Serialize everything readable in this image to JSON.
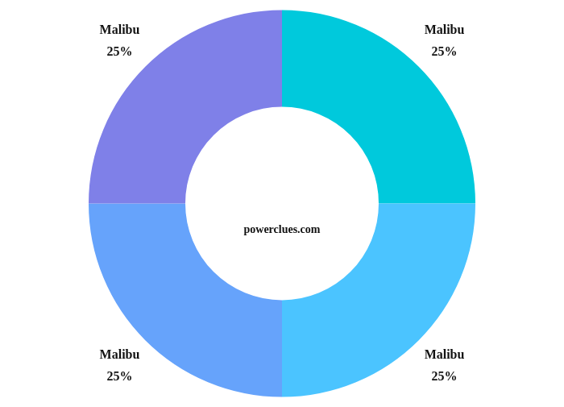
{
  "chart_data": {
    "type": "doughnut",
    "categories": [
      "Malibu",
      "Malibu",
      "Malibu",
      "Malibu"
    ],
    "values": [
      25,
      25,
      25,
      25
    ],
    "value_labels": [
      "25%",
      "25%",
      "25%",
      "25%"
    ],
    "colors": [
      "#00c9dc",
      "#4bc4ff",
      "#66a3fb",
      "#7f80e8"
    ],
    "data_labels": true,
    "legend": false,
    "annotations": [
      "powerclues.com"
    ]
  }
}
